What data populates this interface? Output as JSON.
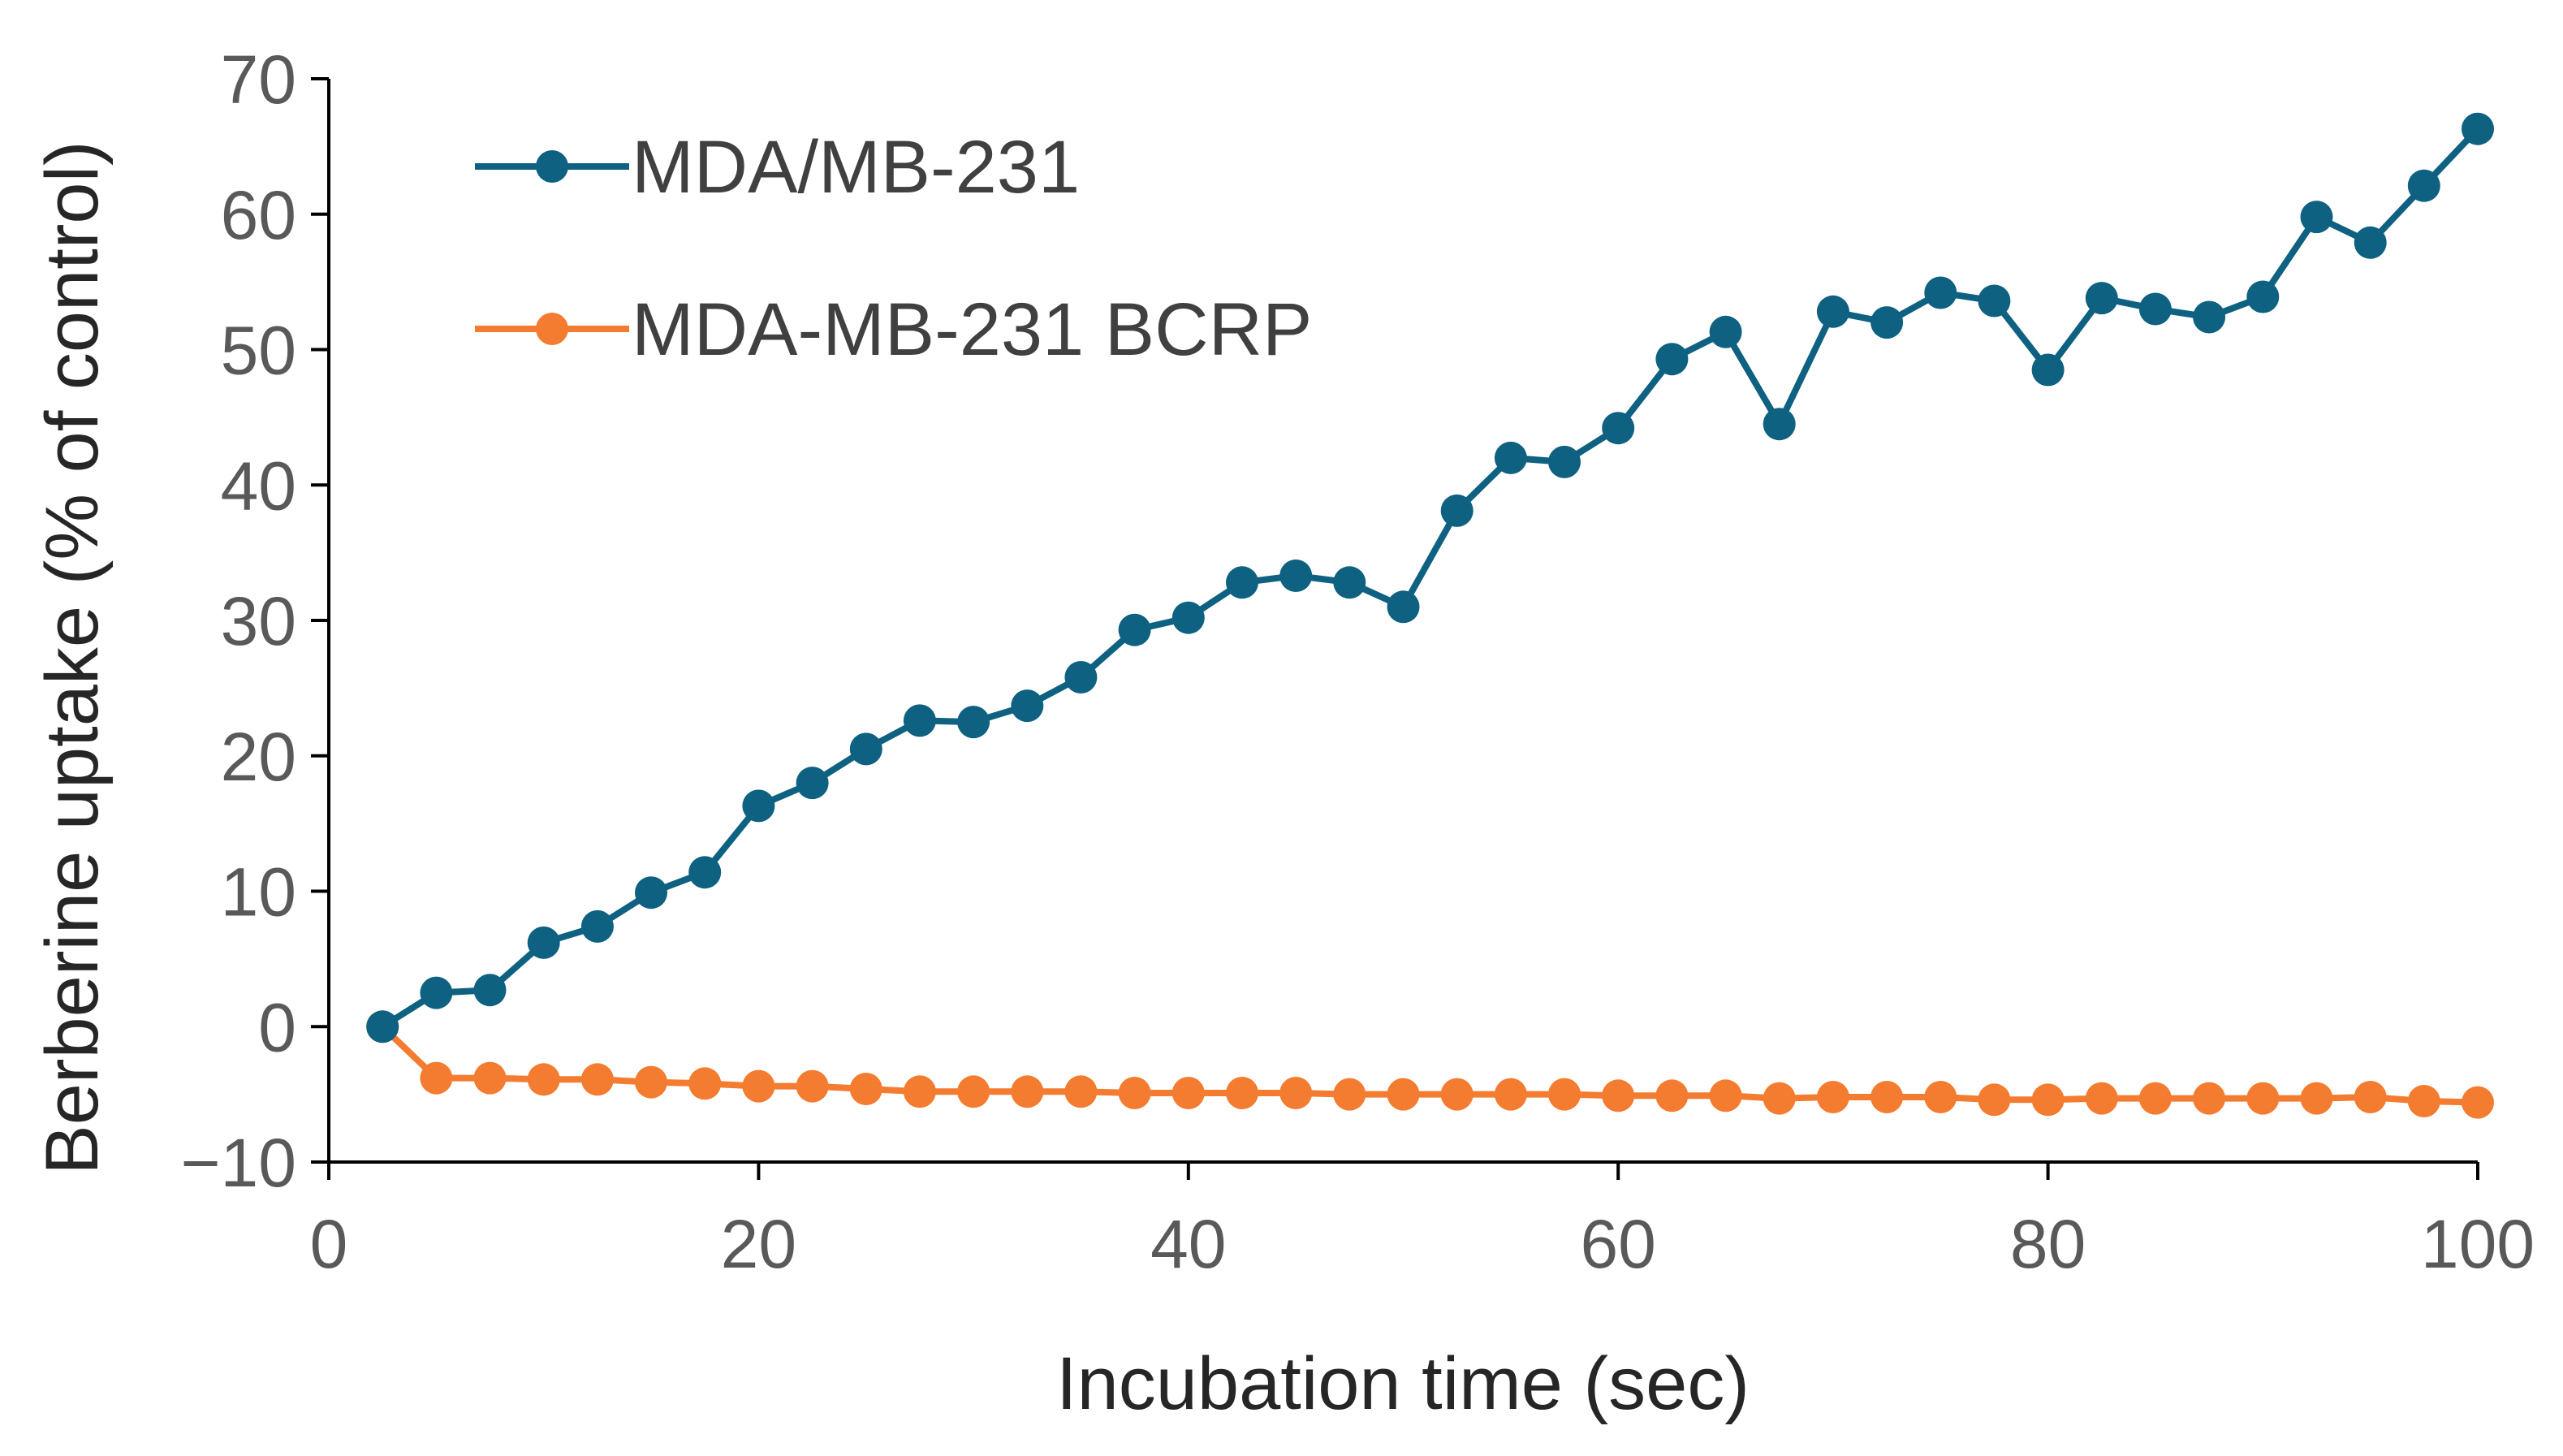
{
  "chart_data": {
    "type": "line",
    "title": "",
    "xlabel": "Incubation time (sec)",
    "ylabel": "Berberine uptake (% of control)",
    "xlim": [
      0,
      100
    ],
    "ylim": [
      -10,
      70
    ],
    "xticks": [
      0,
      20,
      40,
      60,
      80,
      100
    ],
    "yticks": [
      70,
      60,
      50,
      40,
      30,
      20,
      10,
      0,
      -10
    ],
    "ytick_labels": [
      "70",
      "60",
      "50",
      "40",
      "30",
      "20",
      "10",
      "0",
      "−10"
    ],
    "grid": false,
    "legend_position": "top-left",
    "x": [
      2.5,
      5,
      7.5,
      10,
      12.5,
      15,
      17.5,
      20,
      22.5,
      25,
      27.5,
      30,
      32.5,
      35,
      37.5,
      40,
      42.5,
      45,
      47.5,
      50,
      52.5,
      55,
      57.5,
      60,
      62.5,
      65,
      67.5,
      70,
      72.5,
      75,
      77.5,
      80,
      82.5,
      85,
      87.5,
      90,
      92.5,
      95,
      97.5,
      100
    ],
    "series": [
      {
        "name": "MDA/MB-231",
        "color": "#0E6180",
        "values": [
          0,
          2.5,
          2.7,
          6.2,
          7.4,
          9.9,
          11.4,
          16.3,
          18.0,
          20.5,
          22.6,
          22.5,
          23.7,
          25.8,
          29.3,
          30.2,
          32.8,
          33.3,
          32.8,
          31.0,
          38.1,
          42.0,
          41.7,
          44.2,
          49.3,
          51.3,
          44.5,
          52.8,
          52.0,
          54.2,
          53.6,
          48.5,
          53.8,
          53.0,
          52.4,
          53.9,
          59.8,
          57.9,
          62.1,
          66.3
        ]
      },
      {
        "name": "MDA-MB-231 BCRP",
        "color": "#F47C30",
        "values": [
          0,
          -3.8,
          -3.8,
          -3.9,
          -3.9,
          -4.1,
          -4.2,
          -4.4,
          -4.4,
          -4.6,
          -4.8,
          -4.8,
          -4.8,
          -4.8,
          -4.9,
          -4.9,
          -4.9,
          -4.9,
          -5.0,
          -5.0,
          -5.0,
          -5.0,
          -5.0,
          -5.1,
          -5.1,
          -5.1,
          -5.3,
          -5.2,
          -5.2,
          -5.2,
          -5.4,
          -5.4,
          -5.3,
          -5.3,
          -5.3,
          -5.3,
          -5.3,
          -5.2,
          -5.5,
          -5.6
        ]
      }
    ]
  }
}
